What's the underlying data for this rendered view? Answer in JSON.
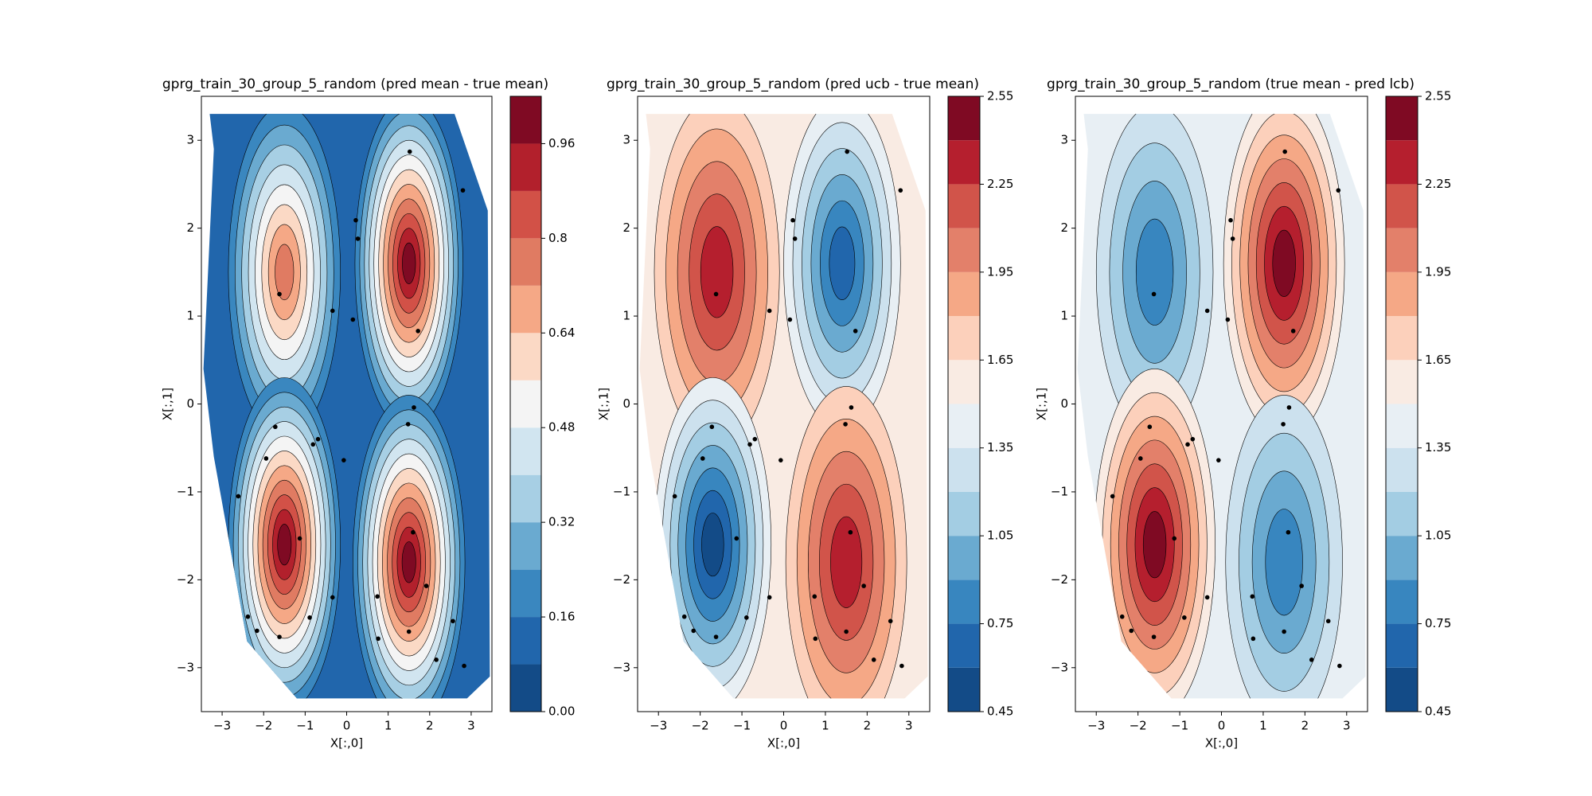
{
  "chart_data": [
    {
      "type": "contour",
      "title": "gprg_train_30_group_5_random (pred mean - true mean)",
      "xlabel": "X[:,0]",
      "ylabel": "X[:,1]",
      "xlim": [
        -3.5,
        3.5
      ],
      "ylim": [
        -3.5,
        3.5
      ],
      "xticks": [
        {
          "value": -3,
          "label": "−3"
        },
        {
          "value": -2,
          "label": "−2"
        },
        {
          "value": -1,
          "label": "−1"
        },
        0,
        1,
        2,
        3
      ],
      "yticks": [
        {
          "value": -3,
          "label": "−3"
        },
        {
          "value": -2,
          "label": "−2"
        },
        {
          "value": -1,
          "label": "−1"
        },
        0,
        1,
        2,
        3
      ],
      "x": [
        1.52,
        2.8,
        0.22,
        0.27,
        -1.62,
        -0.34,
        0.15,
        1.72,
        1.62,
        1.48,
        -1.72,
        -0.69,
        -0.81,
        -1.94,
        -0.07,
        -2.61,
        -1.13,
        1.6,
        1.92,
        -0.34,
        0.74,
        -2.38,
        -0.89,
        2.56,
        -2.16,
        1.5,
        -1.62,
        0.76,
        2.16,
        2.83
      ],
      "y": [
        2.87,
        2.43,
        2.09,
        1.88,
        1.25,
        1.06,
        0.96,
        0.83,
        -0.04,
        -0.23,
        -0.26,
        -0.4,
        -0.46,
        -0.62,
        -0.64,
        -1.05,
        -1.53,
        -1.46,
        -2.07,
        -2.2,
        -2.19,
        -2.42,
        -2.43,
        -2.47,
        -2.58,
        -2.59,
        -2.65,
        -2.67,
        -2.91,
        -2.98
      ],
      "point_color": "#000000",
      "levels": [
        0,
        0.08,
        0.16,
        0.24,
        0.32,
        0.4,
        0.48,
        0.56,
        0.64,
        0.72,
        0.8,
        0.88,
        0.96,
        1.04
      ],
      "colors": [
        "#134b87",
        "#2166ac",
        "#3a87bf",
        "#6aaad0",
        "#a7cfe4",
        "#d1e5f0",
        "#f4f4f4",
        "#fbd9c5",
        "#f5a886",
        "#e07b62",
        "#d25147",
        "#b2202c",
        "#7f0a23"
      ],
      "colorbar_ticks": [
        {
          "value": 0,
          "label": "0.00"
        },
        0.16,
        0.32,
        0.48,
        0.64,
        0.8,
        0.96
      ]
    },
    {
      "type": "contour",
      "title": "gprg_train_30_group_5_random (pred ucb - true mean)",
      "xlabel": "X[:,0]",
      "ylabel": "X[:,1]",
      "xlim": [
        -3.5,
        3.5
      ],
      "ylim": [
        -3.5,
        3.5
      ],
      "xticks": [
        {
          "value": -3,
          "label": "−3"
        },
        {
          "value": -2,
          "label": "−2"
        },
        {
          "value": -1,
          "label": "−1"
        },
        0,
        1,
        2,
        3
      ],
      "yticks": [
        {
          "value": -3,
          "label": "−3"
        },
        {
          "value": -2,
          "label": "−2"
        },
        {
          "value": -1,
          "label": "−1"
        },
        0,
        1,
        2,
        3
      ],
      "x": [
        1.52,
        2.8,
        0.22,
        0.27,
        -1.62,
        -0.34,
        0.15,
        1.72,
        1.62,
        1.48,
        -1.72,
        -0.69,
        -0.81,
        -1.94,
        -0.07,
        -2.61,
        -1.13,
        1.6,
        1.92,
        -0.34,
        0.74,
        -2.38,
        -0.89,
        2.56,
        -2.16,
        1.5,
        -1.62,
        0.76,
        2.16,
        2.83
      ],
      "y": [
        2.87,
        2.43,
        2.09,
        1.88,
        1.25,
        1.06,
        0.96,
        0.83,
        -0.04,
        -0.23,
        -0.26,
        -0.4,
        -0.46,
        -0.62,
        -0.64,
        -1.05,
        -1.53,
        -1.46,
        -2.07,
        -2.2,
        -2.19,
        -2.42,
        -2.43,
        -2.47,
        -2.58,
        -2.59,
        -2.65,
        -2.67,
        -2.91,
        -2.98
      ],
      "point_color": "#000000",
      "levels": [
        0.45,
        0.6,
        0.75,
        0.9,
        1.05,
        1.2,
        1.35,
        1.5,
        1.65,
        1.8,
        1.95,
        2.1,
        2.25,
        2.4,
        2.55
      ],
      "colors": [
        "#134b87",
        "#2166ac",
        "#3886bf",
        "#6aaad0",
        "#a3cde3",
        "#cce1ee",
        "#e8eff4",
        "#f9ebe3",
        "#fcd0bb",
        "#f5a886",
        "#e3806a",
        "#d1544a",
        "#b51f2e",
        "#7f0a23"
      ],
      "colorbar_ticks": [
        0.45,
        0.75,
        1.05,
        1.35,
        1.65,
        1.95,
        2.25,
        2.55
      ]
    },
    {
      "type": "contour",
      "title": "gprg_train_30_group_5_random (true mean - pred lcb)",
      "xlabel": "X[:,0]",
      "ylabel": "X[:,1]",
      "xlim": [
        -3.5,
        3.5
      ],
      "ylim": [
        -3.5,
        3.5
      ],
      "xticks": [
        {
          "value": -3,
          "label": "−3"
        },
        {
          "value": -2,
          "label": "−2"
        },
        {
          "value": -1,
          "label": "−1"
        },
        0,
        1,
        2,
        3
      ],
      "yticks": [
        {
          "value": -3,
          "label": "−3"
        },
        {
          "value": -2,
          "label": "−2"
        },
        {
          "value": -1,
          "label": "−1"
        },
        0,
        1,
        2,
        3
      ],
      "x": [
        1.52,
        2.8,
        0.22,
        0.27,
        -1.62,
        -0.34,
        0.15,
        1.72,
        1.62,
        1.48,
        -1.72,
        -0.69,
        -0.81,
        -1.94,
        -0.07,
        -2.61,
        -1.13,
        1.6,
        1.92,
        -0.34,
        0.74,
        -2.38,
        -0.89,
        2.56,
        -2.16,
        1.5,
        -1.62,
        0.76,
        2.16,
        2.83
      ],
      "y": [
        2.87,
        2.43,
        2.09,
        1.88,
        1.25,
        1.06,
        0.96,
        0.83,
        -0.04,
        -0.23,
        -0.26,
        -0.4,
        -0.46,
        -0.62,
        -0.64,
        -1.05,
        -1.53,
        -1.46,
        -2.07,
        -2.2,
        -2.19,
        -2.42,
        -2.43,
        -2.47,
        -2.58,
        -2.59,
        -2.65,
        -2.67,
        -2.91,
        -2.98
      ],
      "point_color": "#000000",
      "levels": [
        0.45,
        0.6,
        0.75,
        0.9,
        1.05,
        1.2,
        1.35,
        1.5,
        1.65,
        1.8,
        1.95,
        2.1,
        2.25,
        2.4,
        2.55
      ],
      "colors": [
        "#134b87",
        "#2166ac",
        "#3886bf",
        "#6aaad0",
        "#a3cde3",
        "#cce1ee",
        "#e8eff4",
        "#f9ebe3",
        "#fcd0bb",
        "#f5a886",
        "#e3806a",
        "#d1544a",
        "#b51f2e",
        "#7f0a23"
      ],
      "colorbar_ticks": [
        0.45,
        0.75,
        1.05,
        1.35,
        1.65,
        1.95,
        2.25,
        2.55
      ]
    }
  ]
}
